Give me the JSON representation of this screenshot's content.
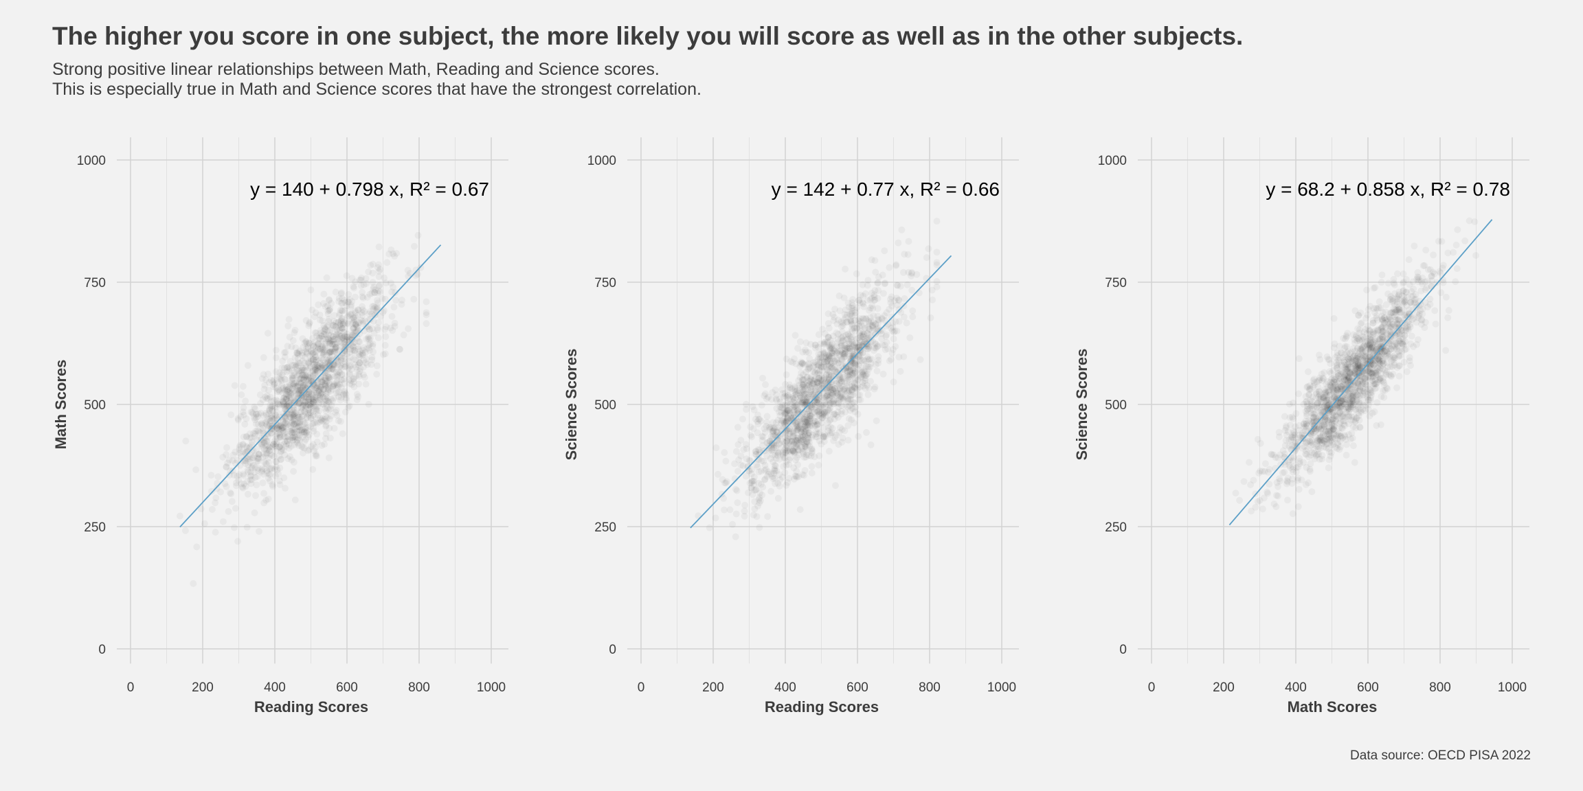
{
  "header": {
    "title": "The higher you score in one subject, the more likely you will score as well as in the other subjects.",
    "subtitle_line1": "Strong positive linear relationships between Math, Reading and Science scores.",
    "subtitle_line2": "This is especially true in Math and Science scores that have the strongest correlation."
  },
  "caption": "Data source: OECD PISA 2022",
  "colors": {
    "background": "#f2f2f2",
    "grid": "#d2d2d2",
    "points": "#000000",
    "fit_line": "#5b9fc7",
    "text": "#3c3c3c"
  },
  "chart_data": [
    {
      "type": "scatter",
      "xlabel": "Reading Scores",
      "ylabel": "Math Scores",
      "xlim": [
        0,
        1000
      ],
      "ylim": [
        0,
        1000
      ],
      "xticks": [
        0,
        200,
        400,
        600,
        800,
        1000
      ],
      "yticks": [
        0,
        250,
        500,
        750,
        1000
      ],
      "grid": true,
      "fit": {
        "intercept": 140,
        "slope": 0.798,
        "r2": 0.67,
        "x_range": [
          137,
          860
        ],
        "label": "y = 140 + 0.798 x, R² = 0.67"
      },
      "points": {
        "alpha": 0.04,
        "x_mean": 500,
        "x_sd": 110,
        "r2": 0.67
      }
    },
    {
      "type": "scatter",
      "xlabel": "Reading Scores",
      "ylabel": "Science Scores",
      "xlim": [
        0,
        1000
      ],
      "ylim": [
        0,
        1000
      ],
      "xticks": [
        0,
        200,
        400,
        600,
        800,
        1000
      ],
      "yticks": [
        0,
        250,
        500,
        750,
        1000
      ],
      "grid": true,
      "fit": {
        "intercept": 142,
        "slope": 0.77,
        "r2": 0.66,
        "x_range": [
          137,
          860
        ],
        "label": "y = 142 + 0.77 x, R² = 0.66"
      },
      "points": {
        "alpha": 0.04,
        "x_mean": 500,
        "x_sd": 110,
        "r2": 0.66
      }
    },
    {
      "type": "scatter",
      "xlabel": "Math Scores",
      "ylabel": "Science Scores",
      "xlim": [
        0,
        1000
      ],
      "ylim": [
        0,
        1000
      ],
      "xticks": [
        0,
        200,
        400,
        600,
        800,
        1000
      ],
      "yticks": [
        0,
        250,
        500,
        750,
        1000
      ],
      "grid": true,
      "fit": {
        "intercept": 68.2,
        "slope": 0.858,
        "r2": 0.78,
        "x_range": [
          216,
          944
        ],
        "label": "y = 68.2 + 0.858 x, R² = 0.78"
      },
      "points": {
        "alpha": 0.04,
        "x_mean": 500,
        "x_sd": 110,
        "r2": 0.78
      }
    }
  ]
}
